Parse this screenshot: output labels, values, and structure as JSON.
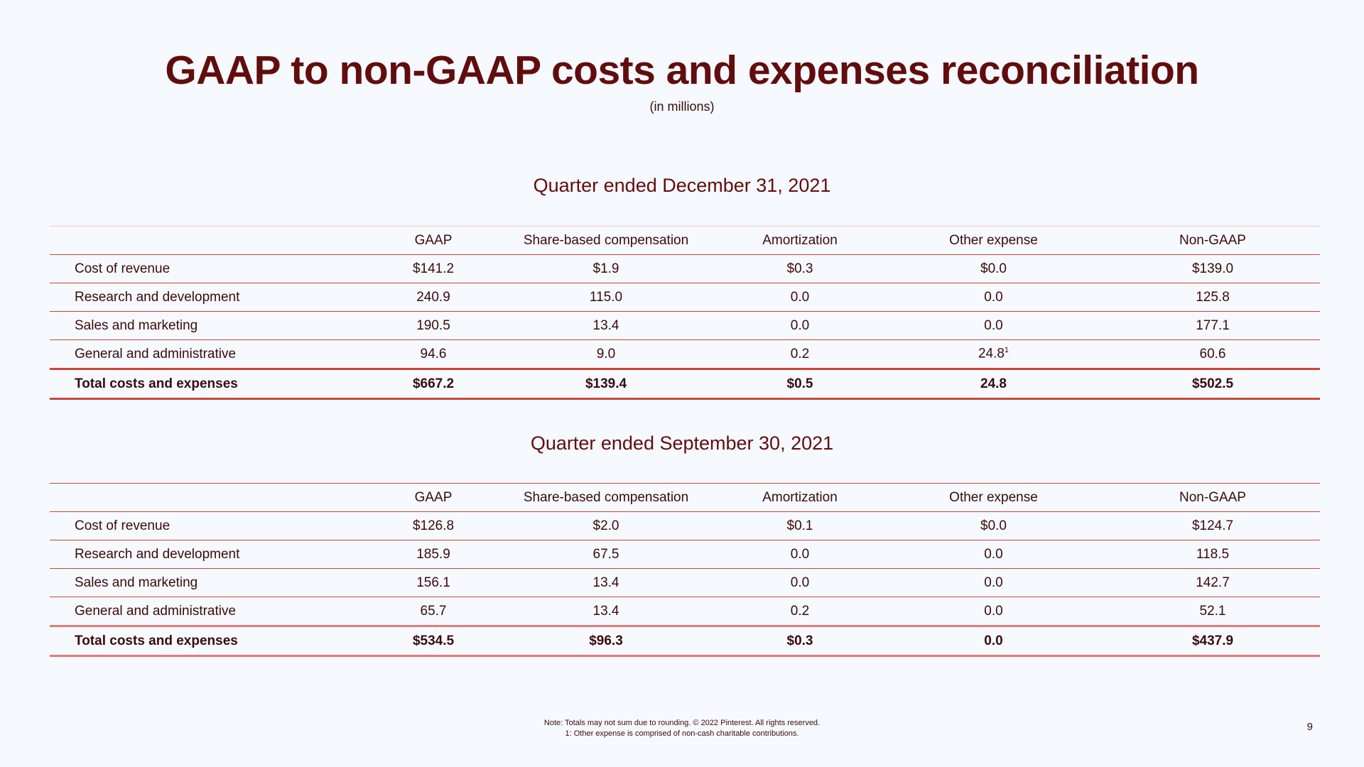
{
  "title": "GAAP to non-GAAP costs and expenses reconciliation",
  "subtitle": "(in millions)",
  "columns": [
    "GAAP",
    "Share-based compensation",
    "Amortization",
    "Other expense",
    "Non-GAAP"
  ],
  "q4": {
    "heading": "Quarter ended December 31, 2021",
    "rows": [
      {
        "label": "Cost of revenue",
        "gaap": "$141.2",
        "sbc": "$1.9",
        "amort": "$0.3",
        "other": "$0.0",
        "nongaap": "$139.0"
      },
      {
        "label": "Research and development",
        "gaap": "240.9",
        "sbc": "115.0",
        "amort": "0.0",
        "other": "0.0",
        "nongaap": "125.8"
      },
      {
        "label": "Sales and marketing",
        "gaap": "190.5",
        "sbc": "13.4",
        "amort": "0.0",
        "other": "0.0",
        "nongaap": "177.1"
      },
      {
        "label": "General and administrative",
        "gaap": "94.6",
        "sbc": "9.0",
        "amort": "0.2",
        "other": "24.8",
        "other_footnote": "1",
        "nongaap": "60.6"
      }
    ],
    "total": {
      "label": "Total costs and expenses",
      "gaap": "$667.2",
      "sbc": "$139.4",
      "amort": "$0.5",
      "other": "24.8",
      "nongaap": "$502.5"
    }
  },
  "q3": {
    "heading": "Quarter ended September 30, 2021",
    "rows": [
      {
        "label": "Cost of revenue",
        "gaap": "$126.8",
        "sbc": "$2.0",
        "amort": "$0.1",
        "other": "$0.0",
        "nongaap": "$124.7"
      },
      {
        "label": "Research and development",
        "gaap": "185.9",
        "sbc": "67.5",
        "amort": "0.0",
        "other": "0.0",
        "nongaap": "118.5"
      },
      {
        "label": "Sales and marketing",
        "gaap": "156.1",
        "sbc": "13.4",
        "amort": "0.0",
        "other": "0.0",
        "nongaap": "142.7"
      },
      {
        "label": "General and administrative",
        "gaap": "65.7",
        "sbc": "13.4",
        "amort": "0.2",
        "other": "0.0",
        "nongaap": "52.1"
      }
    ],
    "total": {
      "label": "Total costs and expenses",
      "gaap": "$534.5",
      "sbc": "$96.3",
      "amort": "$0.3",
      "other": "0.0",
      "nongaap": "$437.9"
    }
  },
  "footnote": {
    "line1": "Note: Totals may not sum due to rounding. © 2022 Pinterest. All rights reserved.",
    "line2": "1:  Other expense is comprised of non-cash charitable contributions."
  },
  "page_number": "9"
}
